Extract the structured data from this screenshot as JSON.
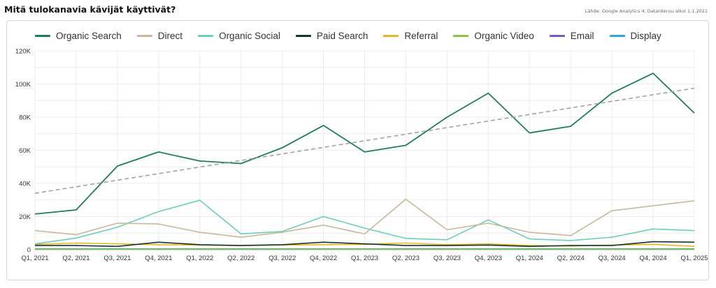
{
  "header": {
    "title": "Mitä tulokanavia kävijät käyttivät?",
    "source": "Lähde: Google Analytics 4. Datankeruu alkoi 1.1.2021"
  },
  "chart_data": {
    "type": "line",
    "title": "",
    "xlabel": "",
    "ylabel": "",
    "categories": [
      "Q1, 2021",
      "Q2, 2021",
      "Q3, 2021",
      "Q4, 2021",
      "Q1, 2022",
      "Q2, 2022",
      "Q3, 2022",
      "Q4, 2022",
      "Q1, 2023",
      "Q2, 2023",
      "Q3, 2023",
      "Q4, 2023",
      "Q1, 2024",
      "Q2, 2024",
      "Q3, 2024",
      "Q4, 2024",
      "Q1, 2025"
    ],
    "ylim": [
      0,
      120000
    ],
    "yticks": [
      0,
      20000,
      40000,
      60000,
      80000,
      100000,
      120000
    ],
    "ytick_labels": [
      "0",
      "20K",
      "40K",
      "60K",
      "80K",
      "100K",
      "120K"
    ],
    "grid": true,
    "legend_position": "top-left",
    "series": [
      {
        "name": "Organic Search",
        "color": "#1f7a63",
        "values": [
          21500,
          24000,
          50500,
          59000,
          53500,
          52000,
          61500,
          75000,
          59000,
          63000,
          80000,
          94500,
          70500,
          74500,
          94500,
          106500,
          82500
        ]
      },
      {
        "name": "Direct",
        "color": "#c8b89a",
        "values": [
          11500,
          9000,
          16000,
          15500,
          10500,
          7500,
          10500,
          14800,
          9500,
          30500,
          12000,
          16000,
          10500,
          8500,
          23500,
          26500,
          29500
        ]
      },
      {
        "name": "Organic Social",
        "color": "#6dcdbd",
        "values": [
          3500,
          7000,
          13500,
          23000,
          29800,
          9500,
          11000,
          20000,
          13000,
          6800,
          6000,
          18000,
          6500,
          5500,
          7500,
          12500,
          11500
        ]
      },
      {
        "name": "Paid Search",
        "color": "#11362a",
        "values": [
          2500,
          2500,
          2000,
          4500,
          3000,
          2500,
          3000,
          4500,
          3500,
          2500,
          2500,
          2800,
          2000,
          2500,
          2500,
          4800,
          4500
        ]
      },
      {
        "name": "Referral",
        "color": "#e8b520",
        "values": [
          3200,
          4000,
          3500,
          3000,
          2800,
          2500,
          2800,
          3000,
          3200,
          4000,
          3000,
          3500,
          2500,
          2200,
          2800,
          3200,
          2000
        ]
      },
      {
        "name": "Organic Video",
        "color": "#8bc34a",
        "values": [
          300,
          300,
          300,
          300,
          300,
          300,
          300,
          300,
          300,
          300,
          300,
          300,
          300,
          300,
          300,
          300,
          300
        ]
      },
      {
        "name": "Email",
        "color": "#7e57c2",
        "values": [
          200,
          200,
          200,
          200,
          200,
          200,
          200,
          200,
          200,
          200,
          200,
          200,
          200,
          200,
          200,
          200,
          200
        ]
      },
      {
        "name": "Display",
        "color": "#29a9e0",
        "values": [
          500,
          500,
          500,
          500,
          500,
          500,
          500,
          500,
          500,
          500,
          500,
          500,
          500,
          500,
          500,
          500,
          500
        ]
      }
    ],
    "trendline": {
      "series": "Organic Search",
      "color": "#a3a3a3",
      "dashed": true,
      "start_value": 34000,
      "end_value": 97500
    }
  }
}
